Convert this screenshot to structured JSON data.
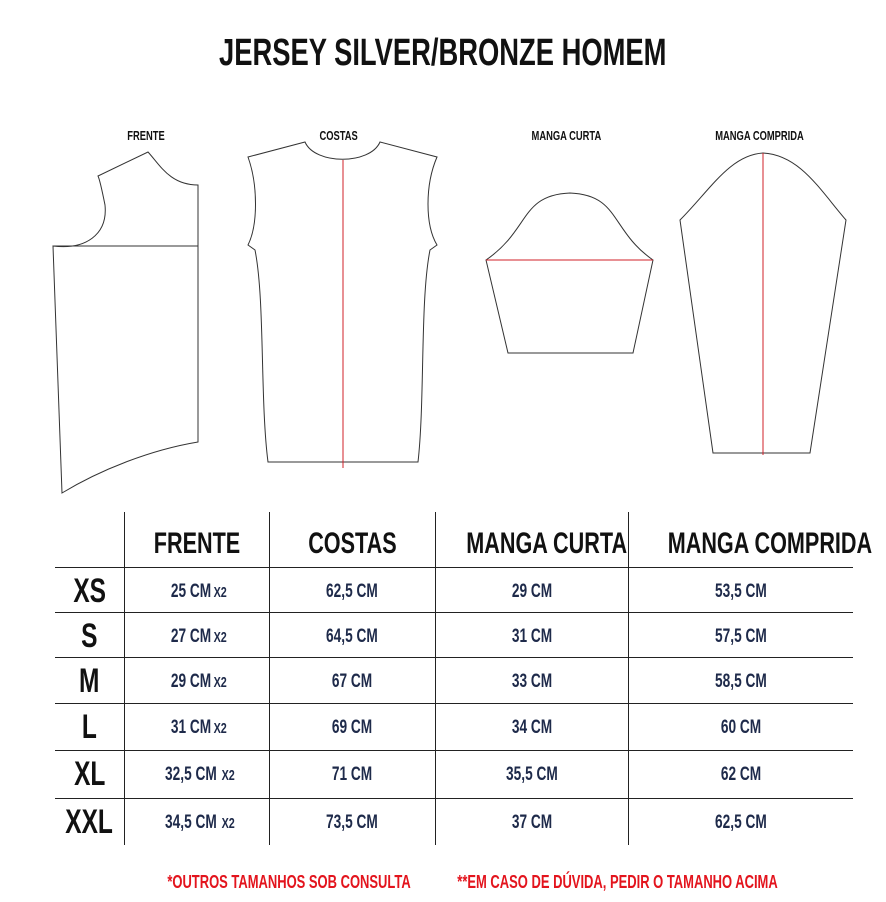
{
  "title": "JERSEY SILVER/BRONZE HOMEM",
  "pattern_labels": [
    "FRENTE",
    "COSTAS",
    "MANGA CURTA",
    "MANGA COMPRIDA"
  ],
  "table": {
    "headers": [
      "FRENTE",
      "COSTAS",
      "MANGA CURTA",
      "MANGA COMPRIDA"
    ],
    "rows": [
      {
        "size": "XS",
        "frente": "25 CM",
        "frente_mult": "X2",
        "costas": "62,5 CM",
        "manga_curta": "29 CM",
        "manga_comprida": "53,5 CM"
      },
      {
        "size": "S",
        "frente": "27 CM",
        "frente_mult": "X2",
        "costas": "64,5 CM",
        "manga_curta": "31 CM",
        "manga_comprida": "57,5 CM"
      },
      {
        "size": "M",
        "frente": "29 CM",
        "frente_mult": "X2",
        "costas": "67 CM",
        "manga_curta": "33 CM",
        "manga_comprida": "58,5 CM"
      },
      {
        "size": "L",
        "frente": "31 CM",
        "frente_mult": "X2",
        "costas": "69 CM",
        "manga_curta": "34 CM",
        "manga_comprida": "60 CM"
      },
      {
        "size": "XL",
        "frente": "32,5 CM",
        "frente_mult": "X2",
        "costas": "71 CM",
        "manga_curta": "35,5 CM",
        "manga_comprida": "62 CM"
      },
      {
        "size": "XXL",
        "frente": "34,5 CM",
        "frente_mult": "X2",
        "costas": "73,5 CM",
        "manga_curta": "37 CM",
        "manga_comprida": "62,5 CM"
      }
    ]
  },
  "notes": [
    "*OUTROS TAMANHOS SOB CONSULTA",
    "**EM CASO DE DÚVIDA, PEDIR O TAMANHO ACIMA"
  ],
  "colors": {
    "measure_line": "#d0202a",
    "notes": "#e3141d",
    "values": "#1e2a4a"
  }
}
